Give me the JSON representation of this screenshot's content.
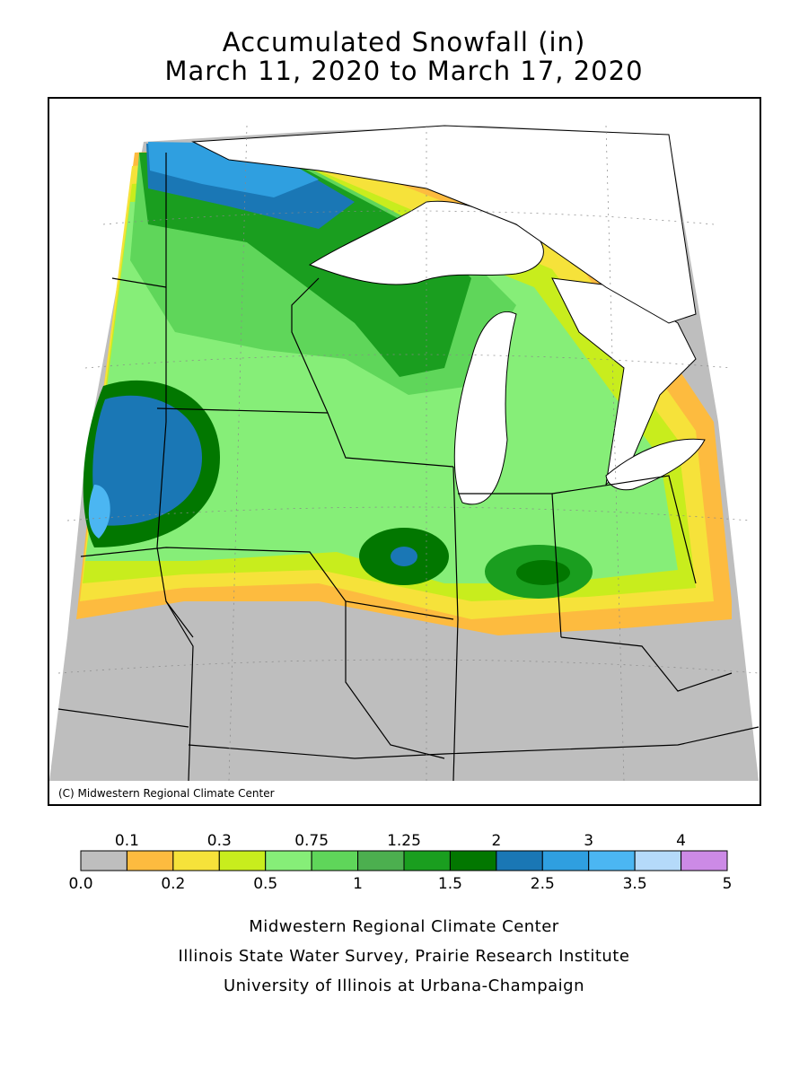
{
  "title_line1": "Accumulated Snowfall (in)",
  "title_line2": "March 11, 2020 to March 17, 2020",
  "copyright": "(C) Midwestern Regional Climate Center",
  "legend": {
    "top_labels": [
      "0.1",
      "0.3",
      "0.75",
      "1.25",
      "2",
      "3",
      "4"
    ],
    "bottom_labels": [
      "0.0",
      "0.2",
      "0.5",
      "1",
      "1.5",
      "2.5",
      "3.5",
      "5"
    ],
    "bins": [
      {
        "from": "0.0",
        "to": "0.1",
        "color": "#bebebe"
      },
      {
        "from": "0.1",
        "to": "0.2",
        "color": "#fdbb3f"
      },
      {
        "from": "0.2",
        "to": "0.3",
        "color": "#f6e23a"
      },
      {
        "from": "0.3",
        "to": "0.5",
        "color": "#c8ed1d"
      },
      {
        "from": "0.5",
        "to": "0.75",
        "color": "#86ee78"
      },
      {
        "from": "0.75",
        "to": "1",
        "color": "#5fd65a"
      },
      {
        "from": "1",
        "to": "1.25",
        "color": "#4caf4f"
      },
      {
        "from": "1.25",
        "to": "1.5",
        "color": "#1a9e1f"
      },
      {
        "from": "1.5",
        "to": "2",
        "color": "#027700"
      },
      {
        "from": "2",
        "to": "2.5",
        "color": "#1a77b5"
      },
      {
        "from": "2.5",
        "to": "3",
        "color": "#2f9fe0"
      },
      {
        "from": "3",
        "to": "3.5",
        "color": "#4bb6f2"
      },
      {
        "from": "3.5",
        "to": "4",
        "color": "#b5dafa"
      },
      {
        "from": "4",
        "to": "5",
        "color": "#cc8ae6"
      }
    ]
  },
  "credits": [
    "Midwestern Regional Climate Center",
    "Illinois State Water Survey, Prairie Research Institute",
    "University of Illinois at Urbana-Champaign"
  ],
  "colors": {
    "background_no_data": "#ffffff",
    "water": "#ffffff",
    "boundary": "#000000"
  }
}
